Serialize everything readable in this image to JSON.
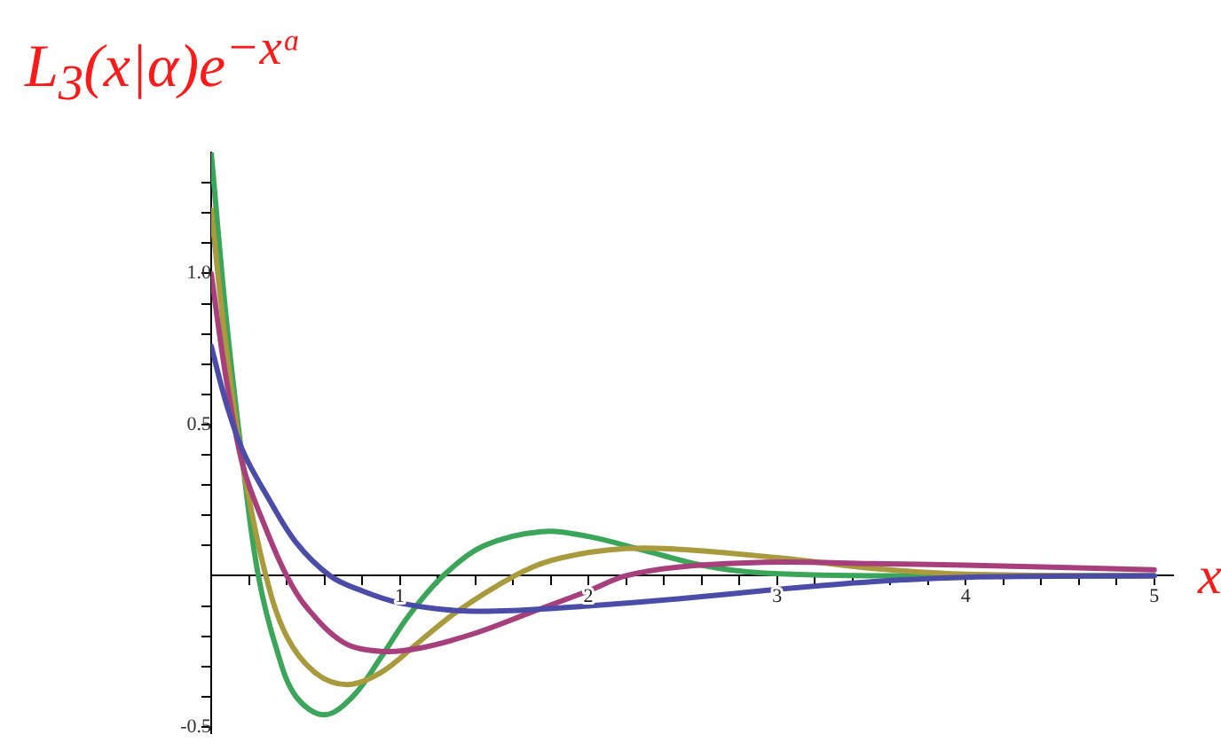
{
  "chart_data": {
    "type": "line",
    "title": "L$_{3}$(x|α)e$^{−xᵅ}$",
    "xlabel": "x",
    "xlim": [
      0,
      5.1
    ],
    "ylim": [
      -0.52,
      1.4
    ],
    "xticks": [
      {
        "value": 0.2,
        "label": null
      },
      {
        "value": 0.4,
        "label": null
      },
      {
        "value": 0.6,
        "label": null
      },
      {
        "value": 0.8,
        "label": null
      },
      1,
      {
        "value": 1.2,
        "label": null
      },
      {
        "value": 1.4,
        "label": null
      },
      {
        "value": 1.6,
        "label": null
      },
      {
        "value": 1.8,
        "label": null
      },
      2,
      {
        "value": 2.2,
        "label": null
      },
      {
        "value": 2.4,
        "label": null
      },
      {
        "value": 2.6,
        "label": null
      },
      {
        "value": 2.8,
        "label": null
      },
      3,
      {
        "value": 3.2,
        "label": null
      },
      {
        "value": 3.4,
        "label": null
      },
      {
        "value": 3.6,
        "label": null
      },
      {
        "value": 3.8,
        "label": null
      },
      4,
      {
        "value": 4.2,
        "label": null
      },
      {
        "value": 4.4,
        "label": null
      },
      {
        "value": 4.6,
        "label": null
      },
      {
        "value": 4.8,
        "label": null
      },
      5
    ],
    "yticks": [
      {
        "value": -0.5,
        "label": "-0.5"
      },
      {
        "value": -0.4,
        "label": null
      },
      {
        "value": -0.3,
        "label": null
      },
      {
        "value": -0.2,
        "label": null
      },
      {
        "value": -0.1,
        "label": null
      },
      {
        "value": 0.1,
        "label": null
      },
      {
        "value": 0.2,
        "label": null
      },
      {
        "value": 0.3,
        "label": null
      },
      {
        "value": 0.4,
        "label": null
      },
      0.5,
      {
        "value": 0.6,
        "label": null
      },
      {
        "value": 0.7,
        "label": null
      },
      {
        "value": 0.8,
        "label": null
      },
      {
        "value": 0.9,
        "label": null
      },
      {
        "value": 1,
        "label": "1.0"
      },
      {
        "value": 1.1,
        "label": null
      },
      {
        "value": 1.2,
        "label": null
      },
      {
        "value": 1.3,
        "label": null
      }
    ],
    "grid": false,
    "legend": false,
    "marker": "none",
    "line_style": "solid",
    "series": [
      {
        "color": "#4b4ba8",
        "x": [
          0,
          0.08,
          0.17,
          0.3,
          0.45,
          0.63,
          0.8,
          1,
          1.3,
          1.6,
          2,
          2.5,
          3,
          3.5,
          4,
          5
        ],
        "values": [
          0.76,
          0.57,
          0.41,
          0.26,
          0.11,
          0,
          -0.05,
          -0.09,
          -0.115,
          -0.115,
          -0.1,
          -0.075,
          -0.045,
          -0.02,
          -0.005,
          0
        ]
      },
      {
        "color": "#a63f7c",
        "x": [
          0,
          0.08,
          0.17,
          0.3,
          0.4,
          0.5,
          0.7,
          0.9,
          1.1,
          1.4,
          1.7,
          2,
          2.2,
          2.5,
          3,
          3.5,
          4,
          5
        ],
        "values": [
          1.0,
          0.65,
          0.36,
          0.14,
          0,
          -0.1,
          -0.22,
          -0.25,
          -0.24,
          -0.19,
          -0.12,
          -0.05,
          0,
          0.03,
          0.045,
          0.04,
          0.035,
          0.02
        ]
      },
      {
        "color": "#a99a3d",
        "x": [
          0,
          0.08,
          0.17,
          0.29,
          0.4,
          0.55,
          0.72,
          0.9,
          1.1,
          1.3,
          1.61,
          1.8,
          2.1,
          2.4,
          3,
          3.5,
          4,
          5
        ],
        "values": [
          1.21,
          0.75,
          0.36,
          0,
          -0.2,
          -0.32,
          -0.36,
          -0.32,
          -0.22,
          -0.12,
          0,
          0.05,
          0.085,
          0.09,
          0.06,
          0.025,
          0.005,
          0
        ]
      },
      {
        "color": "#3ba65a",
        "x": [
          0,
          0.08,
          0.17,
          0.25,
          0.35,
          0.45,
          0.6,
          0.75,
          0.9,
          1.05,
          1.23,
          1.45,
          1.75,
          2,
          2.3,
          2.6,
          2.9,
          3.5,
          5
        ],
        "values": [
          1.4,
          0.85,
          0.36,
          0,
          -0.25,
          -0.4,
          -0.46,
          -0.4,
          -0.27,
          -0.13,
          0,
          0.1,
          0.146,
          0.13,
          0.083,
          0.035,
          0.01,
          0,
          0
        ]
      }
    ]
  }
}
